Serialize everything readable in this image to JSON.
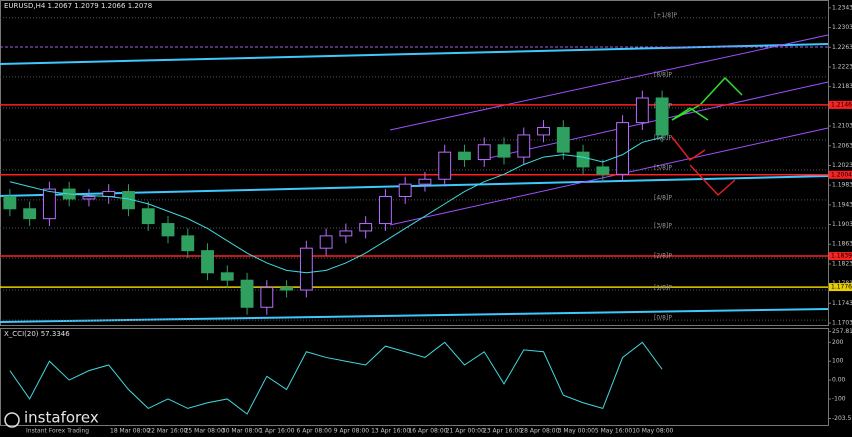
{
  "chart_data": [
    {
      "type": "candlestick",
      "title": "EURUSD,H4 1.2067 1.2079 1.2066 1.2078",
      "open": [
        1.196,
        1.1935,
        1.1915,
        1.1975,
        1.1955,
        1.196,
        1.197,
        1.1935,
        1.1905,
        1.188,
        1.185,
        1.1805,
        1.179,
        1.1735,
        1.1775,
        1.177,
        1.1855,
        1.188,
        1.189,
        1.1905,
        1.196,
        1.1985,
        1.1995,
        1.205,
        1.2035,
        1.2065,
        1.204,
        1.2085,
        1.21,
        1.205,
        1.202,
        1.2005,
        1.211,
        1.216
      ],
      "high": [
        1.1975,
        1.195,
        1.199,
        1.199,
        1.1975,
        1.1985,
        1.1985,
        1.195,
        1.192,
        1.1895,
        1.1865,
        1.182,
        1.1805,
        1.179,
        1.179,
        1.187,
        1.1895,
        1.1905,
        1.192,
        1.1975,
        1.2,
        1.201,
        1.2065,
        1.2065,
        1.208,
        1.208,
        1.21,
        1.2115,
        1.2115,
        1.2065,
        1.2035,
        1.2125,
        1.2175,
        1.2175
      ],
      "low": [
        1.192,
        1.19,
        1.19,
        1.194,
        1.194,
        1.1945,
        1.192,
        1.189,
        1.1865,
        1.1835,
        1.179,
        1.1775,
        1.172,
        1.172,
        1.1755,
        1.1755,
        1.184,
        1.1865,
        1.1875,
        1.189,
        1.1945,
        1.197,
        1.198,
        1.202,
        1.202,
        1.2025,
        1.2025,
        1.207,
        1.2035,
        1.2005,
        1.199,
        1.199,
        1.2095,
        1.207
      ],
      "close": [
        1.1935,
        1.1915,
        1.1975,
        1.1955,
        1.196,
        1.197,
        1.1935,
        1.1905,
        1.188,
        1.185,
        1.1805,
        1.179,
        1.1735,
        1.1775,
        1.177,
        1.1855,
        1.188,
        1.189,
        1.1905,
        1.196,
        1.1985,
        1.1995,
        1.205,
        1.2035,
        1.2065,
        1.204,
        1.2085,
        1.21,
        1.205,
        1.202,
        1.2005,
        1.211,
        1.216,
        1.2085
      ],
      "up_color": "#b86cff",
      "down_color": "#2fa060",
      "ma": {
        "color": "#40d8e0",
        "values": [
          1.199,
          1.198,
          1.197,
          1.1965,
          1.1962,
          1.196,
          1.1955,
          1.1945,
          1.193,
          1.1915,
          1.1895,
          1.187,
          1.1845,
          1.1825,
          1.181,
          1.1805,
          1.181,
          1.1825,
          1.1845,
          1.187,
          1.1895,
          1.192,
          1.1945,
          1.197,
          1.199,
          1.2005,
          1.2025,
          1.204,
          1.2045,
          1.204,
          1.203,
          1.2045,
          1.207,
          1.208
        ]
      },
      "ylim": [
        1.1699,
        1.2359
      ],
      "yticks": [
        1.2343,
        1.2303,
        1.2263,
        1.2223,
        1.2183,
        1.2143,
        1.2103,
        1.2063,
        1.2023,
        1.1983,
        1.1943,
        1.1903,
        1.1863,
        1.1823,
        1.1783,
        1.1743,
        1.1703
      ],
      "levels": [
        {
          "value": 1.2146,
          "label": "1.2146",
          "color": "#ff2020"
        },
        {
          "value": 1.2004,
          "label": "1.2004",
          "color": "#ff2020"
        },
        {
          "value": 1.1839,
          "label": "1.1839",
          "color": "#ff2020"
        },
        {
          "value": 1.1776,
          "label": "1.1776",
          "color": "#e8d000"
        }
      ],
      "murray": [
        {
          "value": 1.2323,
          "label": "[+1/8]P"
        },
        {
          "value": 1.2203,
          "label": "[8/8]P"
        },
        {
          "value": 1.214,
          "label": "[7/8]P"
        },
        {
          "value": 1.2075,
          "label": "[6/8]P"
        },
        {
          "value": 1.2014,
          "label": "[5/8]P"
        },
        {
          "value": 1.1953,
          "label": "[4/8]P"
        },
        {
          "value": 1.1896,
          "label": "[3/8]P"
        },
        {
          "value": 1.1835,
          "label": "[2/8]P"
        },
        {
          "value": 1.177,
          "label": "[1/8]P"
        },
        {
          "value": 1.1709,
          "label": "[0/8]P"
        }
      ],
      "time_labels": [
        "18 Mar 08:00",
        "22 Mar 16:00",
        "25 Mar 08:00",
        "30 Mar 08:00",
        "1 Apr 16:00",
        "6 Apr 08:00",
        "9 Apr 08:00",
        "13 Apr 16:00",
        "16 Apr 08:00",
        "21 Apr 00:00",
        "23 Apr 16:00",
        "28 Apr 08:00",
        "3 May 00:00",
        "5 May 16:00",
        "10 May 08:00"
      ]
    },
    {
      "type": "line",
      "title": "X_CCI(20) 57.3346",
      "color": "#40d8e0",
      "values": [
        50,
        -100,
        100,
        0,
        50,
        80,
        -50,
        -150,
        -100,
        -150,
        -120,
        -100,
        -180,
        20,
        -50,
        150,
        120,
        100,
        80,
        180,
        150,
        120,
        200,
        80,
        150,
        -20,
        160,
        150,
        -80,
        -120,
        -150,
        120,
        200,
        57.3346
      ],
      "ylim": [
        -238,
        276
      ],
      "yticks": [
        {
          "value": 257.812,
          "label": "257.812"
        },
        200,
        100,
        {
          "value": 0,
          "label": "0.00"
        },
        -100,
        {
          "value": -203.517,
          "label": "-203.517"
        }
      ]
    }
  ],
  "logo": {
    "brand": "instaforex",
    "tagline": "Instant Forex Trading"
  }
}
